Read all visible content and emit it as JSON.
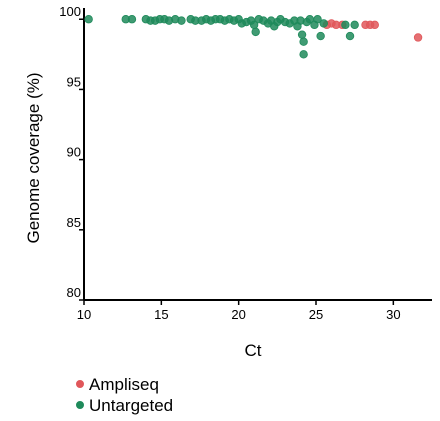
{
  "chart_data": {
    "type": "scatter",
    "xlabel": "Ct",
    "ylabel": "Genome coverage (%)",
    "xlim": [
      10,
      32.5
    ],
    "ylim": [
      80,
      100.8
    ],
    "xticks": [
      10,
      15,
      20,
      25,
      30
    ],
    "yticks": [
      80,
      85,
      90,
      95,
      100
    ],
    "legend_position": "bottom-left",
    "series": [
      {
        "name": "Ampliseq",
        "color": "#e0575a",
        "points": [
          [
            25.7,
            99.6
          ],
          [
            26.0,
            99.7
          ],
          [
            26.3,
            99.6
          ],
          [
            26.7,
            99.6
          ],
          [
            28.2,
            99.6
          ],
          [
            28.5,
            99.6
          ],
          [
            28.8,
            99.6
          ],
          [
            31.6,
            98.7
          ]
        ]
      },
      {
        "name": "Untargeted",
        "color": "#1f8a5b",
        "points": [
          [
            10.3,
            100
          ],
          [
            12.7,
            100
          ],
          [
            13.1,
            100
          ],
          [
            14.0,
            100
          ],
          [
            14.3,
            99.9
          ],
          [
            14.6,
            99.9
          ],
          [
            14.9,
            100
          ],
          [
            15.2,
            100
          ],
          [
            15.5,
            99.9
          ],
          [
            15.9,
            100
          ],
          [
            16.3,
            99.9
          ],
          [
            16.9,
            100
          ],
          [
            17.2,
            99.9
          ],
          [
            17.6,
            99.9
          ],
          [
            17.9,
            100
          ],
          [
            18.2,
            99.9
          ],
          [
            18.5,
            100
          ],
          [
            18.8,
            100
          ],
          [
            19.1,
            99.9
          ],
          [
            19.4,
            100
          ],
          [
            19.7,
            99.9
          ],
          [
            20.0,
            100
          ],
          [
            20.2,
            99.7
          ],
          [
            20.5,
            99.8
          ],
          [
            20.8,
            99.9
          ],
          [
            21.0,
            99.6
          ],
          [
            21.1,
            99.1
          ],
          [
            21.3,
            100
          ],
          [
            21.6,
            99.9
          ],
          [
            21.9,
            99.7
          ],
          [
            22.1,
            99.9
          ],
          [
            22.3,
            99.5
          ],
          [
            22.5,
            99.8
          ],
          [
            22.7,
            100
          ],
          [
            23.0,
            99.8
          ],
          [
            23.3,
            99.7
          ],
          [
            23.6,
            99.9
          ],
          [
            23.8,
            99.5
          ],
          [
            24.0,
            99.9
          ],
          [
            24.1,
            98.9
          ],
          [
            24.2,
            98.4
          ],
          [
            24.2,
            97.5
          ],
          [
            24.4,
            99.8
          ],
          [
            24.6,
            100
          ],
          [
            24.9,
            99.6
          ],
          [
            25.1,
            100
          ],
          [
            25.3,
            98.8
          ],
          [
            25.5,
            99.7
          ],
          [
            26.9,
            99.6
          ],
          [
            27.2,
            98.8
          ],
          [
            27.5,
            99.6
          ]
        ]
      }
    ]
  }
}
